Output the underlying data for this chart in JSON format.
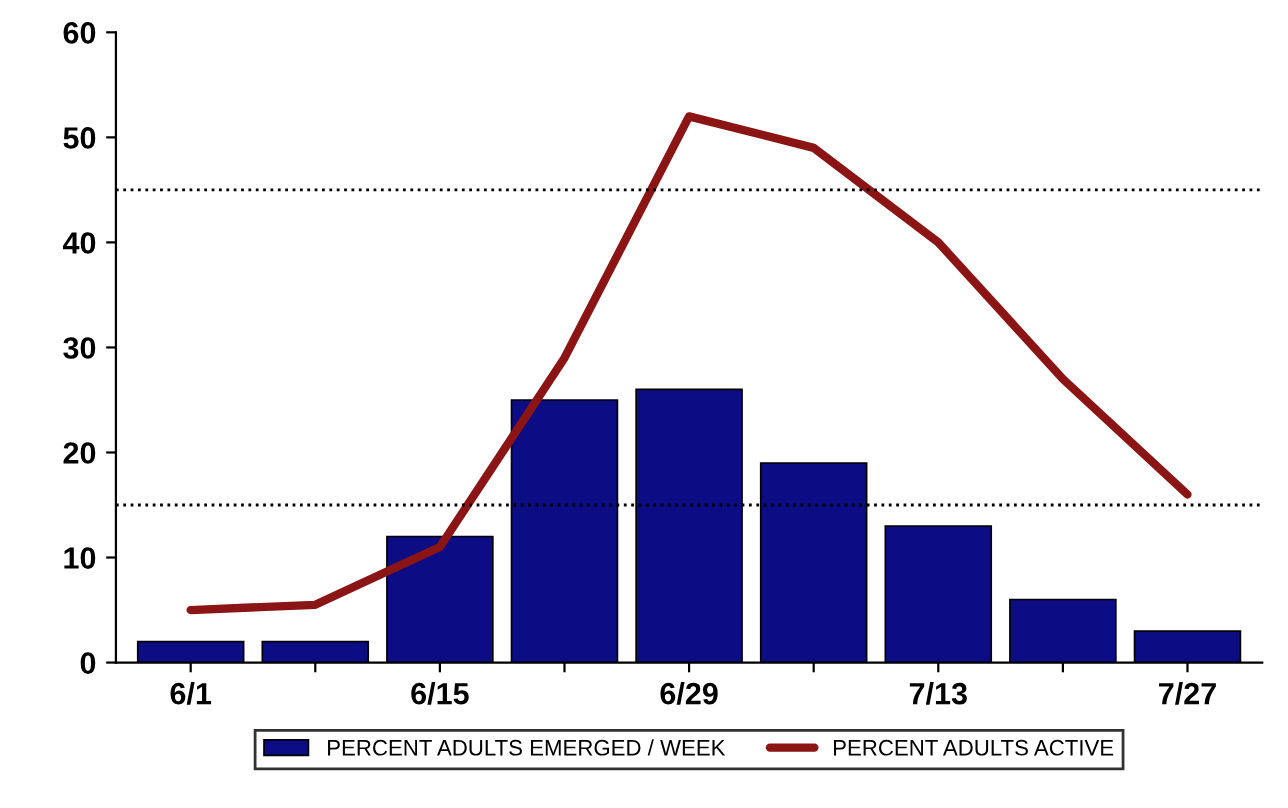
{
  "chart_data": {
    "type": "bar",
    "categories": [
      "6/1",
      null,
      "6/15",
      null,
      "6/29",
      null,
      "7/13",
      null,
      "7/27"
    ],
    "series": [
      {
        "name": "PERCENT ADULTS EMERGED / WEEK",
        "color": "#0c0c84",
        "values": [
          2,
          2,
          12,
          25,
          26,
          19,
          13,
          6,
          3
        ]
      },
      {
        "name": "PERCENT ADULTS ACTIVE",
        "type": "line",
        "color": "#8b1414",
        "values": [
          5,
          5.5,
          11,
          29,
          52,
          49,
          40,
          27,
          16
        ]
      }
    ],
    "ylim": [
      0,
      60
    ],
    "yticks": [
      0,
      10,
      20,
      30,
      40,
      50,
      60
    ],
    "grid": false,
    "legend": "bottom",
    "ref_lines": [
      {
        "axis": "y",
        "value": 45,
        "color": "#000000",
        "line_style": "dotted"
      },
      {
        "axis": "y",
        "value": 15,
        "color": "#000000",
        "line_style": "dotted"
      }
    ]
  }
}
